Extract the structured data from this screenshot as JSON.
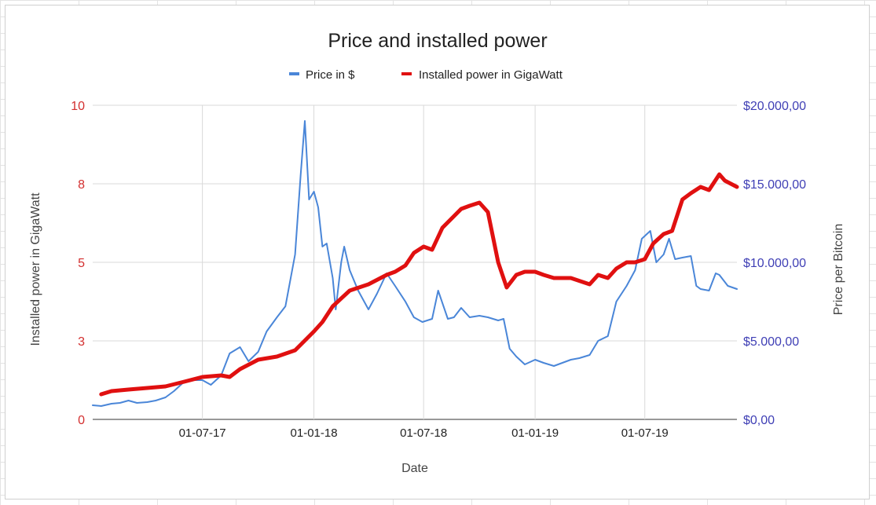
{
  "chart_data": {
    "type": "line",
    "title": "Price and installed power",
    "xlabel": "Date",
    "ylabel_left": "Installed power in GigaWatt",
    "ylabel_right": "Price per Bitcoin",
    "legend_position": "top",
    "grid": true,
    "x_range": [
      "2017-01-01",
      "2019-11-30"
    ],
    "x_ticks": [
      "01-07-17",
      "01-01-18",
      "01-07-18",
      "01-01-19",
      "01-07-19"
    ],
    "x_tick_dates": [
      "2017-07-01",
      "2018-01-01",
      "2018-07-01",
      "2019-01-01",
      "2019-07-01"
    ],
    "ylim_left": [
      0,
      10
    ],
    "yticks_left": [
      "0",
      "3",
      "5",
      "8",
      "10"
    ],
    "yticks_left_values": [
      0,
      2.5,
      5,
      7.5,
      10
    ],
    "ylim_right": [
      0,
      20000
    ],
    "yticks_right": [
      "$0,00",
      "$5.000,00",
      "$10.000,00",
      "$15.000,00",
      "$20.000,00"
    ],
    "yticks_right_values": [
      0,
      5000,
      10000,
      15000,
      20000
    ],
    "colors": {
      "price": "#4a86d8",
      "power": "#e01010",
      "left_ticks": "#d32f2f",
      "right_ticks": "#3f3fb5",
      "grid": "#d9d9d9"
    },
    "series": [
      {
        "name": "Price in $",
        "axis": "right",
        "x": [
          "2017-01-01",
          "2017-01-15",
          "2017-02-01",
          "2017-02-15",
          "2017-03-01",
          "2017-03-15",
          "2017-04-01",
          "2017-04-15",
          "2017-05-01",
          "2017-05-15",
          "2017-06-01",
          "2017-06-15",
          "2017-07-01",
          "2017-07-15",
          "2017-08-01",
          "2017-08-15",
          "2017-09-01",
          "2017-09-15",
          "2017-10-01",
          "2017-10-15",
          "2017-11-01",
          "2017-11-15",
          "2017-12-01",
          "2017-12-10",
          "2017-12-17",
          "2017-12-24",
          "2018-01-01",
          "2018-01-08",
          "2018-01-15",
          "2018-01-22",
          "2018-02-01",
          "2018-02-06",
          "2018-02-15",
          "2018-02-20",
          "2018-03-01",
          "2018-03-15",
          "2018-04-01",
          "2018-04-15",
          "2018-05-01",
          "2018-05-15",
          "2018-06-01",
          "2018-06-15",
          "2018-06-29",
          "2018-07-15",
          "2018-07-25",
          "2018-08-10",
          "2018-08-20",
          "2018-09-01",
          "2018-09-15",
          "2018-10-01",
          "2018-10-15",
          "2018-11-01",
          "2018-11-10",
          "2018-11-20",
          "2018-12-01",
          "2018-12-15",
          "2019-01-01",
          "2019-01-15",
          "2019-02-01",
          "2019-02-15",
          "2019-03-01",
          "2019-03-15",
          "2019-04-01",
          "2019-04-15",
          "2019-05-01",
          "2019-05-15",
          "2019-06-01",
          "2019-06-15",
          "2019-06-26",
          "2019-07-10",
          "2019-07-20",
          "2019-08-01",
          "2019-08-10",
          "2019-08-20",
          "2019-09-01",
          "2019-09-15",
          "2019-09-24",
          "2019-10-01",
          "2019-10-15",
          "2019-10-26",
          "2019-11-01",
          "2019-11-15",
          "2019-11-30"
        ],
        "values": [
          900,
          850,
          1000,
          1050,
          1200,
          1050,
          1100,
          1200,
          1400,
          1800,
          2400,
          2500,
          2500,
          2200,
          2800,
          4200,
          4600,
          3700,
          4300,
          5600,
          6500,
          7200,
          10500,
          15500,
          19000,
          14000,
          14500,
          13500,
          11000,
          11200,
          9000,
          7000,
          10000,
          11000,
          9500,
          8200,
          7000,
          8000,
          9300,
          8500,
          7500,
          6500,
          6200,
          6400,
          8200,
          6400,
          6500,
          7100,
          6500,
          6600,
          6500,
          6300,
          6400,
          4500,
          4000,
          3500,
          3800,
          3600,
          3400,
          3600,
          3800,
          3900,
          4100,
          5000,
          5300,
          7500,
          8500,
          9500,
          11500,
          12000,
          10000,
          10500,
          11500,
          10200,
          10300,
          10400,
          8500,
          8300,
          8200,
          9300,
          9200,
          8500,
          8300
        ]
      },
      {
        "name": "Installed power in GigaWatt",
        "axis": "left",
        "x": [
          "2017-01-15",
          "2017-02-01",
          "2017-03-01",
          "2017-04-01",
          "2017-05-01",
          "2017-06-01",
          "2017-07-01",
          "2017-08-01",
          "2017-08-15",
          "2017-09-01",
          "2017-10-01",
          "2017-11-01",
          "2017-12-01",
          "2018-01-01",
          "2018-01-15",
          "2018-02-01",
          "2018-03-01",
          "2018-04-01",
          "2018-05-01",
          "2018-05-15",
          "2018-06-01",
          "2018-06-15",
          "2018-07-01",
          "2018-07-15",
          "2018-08-01",
          "2018-09-01",
          "2018-09-15",
          "2018-10-01",
          "2018-10-15",
          "2018-11-01",
          "2018-11-15",
          "2018-12-01",
          "2018-12-15",
          "2019-01-01",
          "2019-01-15",
          "2019-02-01",
          "2019-03-01",
          "2019-04-01",
          "2019-04-15",
          "2019-05-01",
          "2019-05-15",
          "2019-06-01",
          "2019-06-15",
          "2019-07-01",
          "2019-07-15",
          "2019-08-01",
          "2019-08-15",
          "2019-09-01",
          "2019-09-15",
          "2019-10-01",
          "2019-10-15",
          "2019-11-01",
          "2019-11-10",
          "2019-11-20",
          "2019-11-30"
        ],
        "values": [
          0.8,
          0.9,
          0.95,
          1.0,
          1.05,
          1.2,
          1.35,
          1.4,
          1.35,
          1.6,
          1.9,
          2.0,
          2.2,
          2.8,
          3.1,
          3.6,
          4.1,
          4.3,
          4.6,
          4.7,
          4.9,
          5.3,
          5.5,
          5.4,
          6.1,
          6.7,
          6.8,
          6.9,
          6.6,
          5.0,
          4.2,
          4.6,
          4.7,
          4.7,
          4.6,
          4.5,
          4.5,
          4.3,
          4.6,
          4.5,
          4.8,
          5.0,
          5.0,
          5.1,
          5.6,
          5.9,
          6.0,
          7.0,
          7.2,
          7.4,
          7.3,
          7.8,
          7.6,
          7.5,
          7.4
        ]
      }
    ]
  }
}
